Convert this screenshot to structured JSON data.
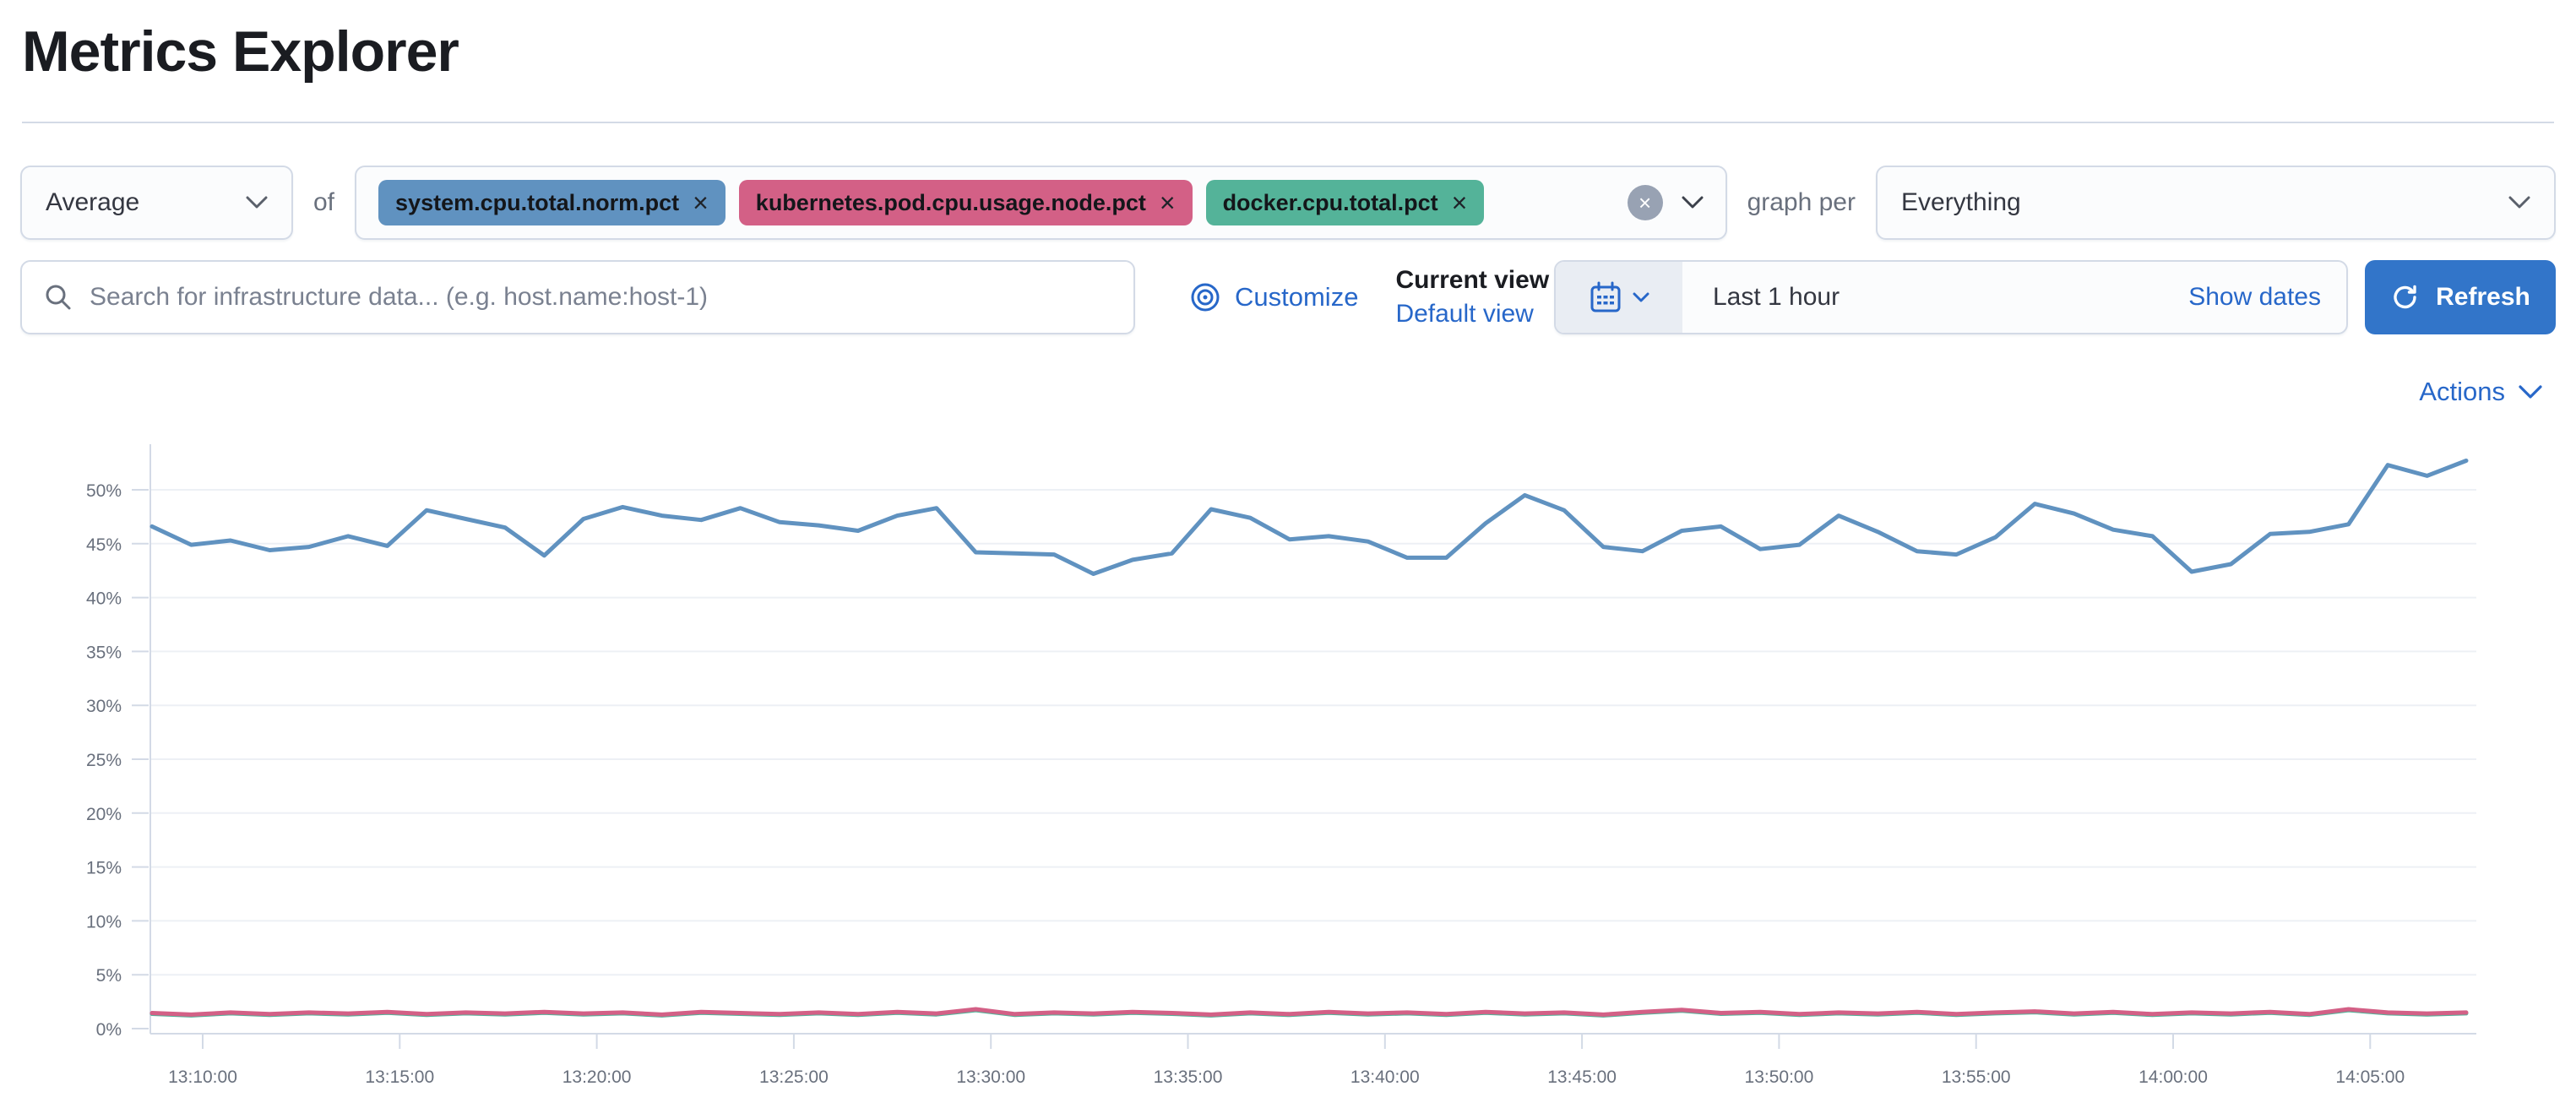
{
  "page": {
    "title": "Metrics Explorer"
  },
  "colors": {
    "link": "#2767c9",
    "primary_button": "#3275c9",
    "text": "#343741",
    "subdued_text": "#69707d",
    "border": "#d3dae6",
    "axis_text": "#69707d",
    "grid_line": "#edf0f5"
  },
  "icons": {
    "close": "×",
    "search": "magnifier",
    "calendar": "calendar",
    "refresh": "circular-arrow",
    "customize": "concentric-circles",
    "chevron": "chevron-down"
  },
  "toolbar": {
    "aggregation": {
      "value": "Average"
    },
    "of_label": "of",
    "metrics": [
      {
        "label": "system.cpu.total.norm.pct",
        "color": "#6092C0"
      },
      {
        "label": "kubernetes.pod.cpu.usage.node.pct",
        "color": "#D36086"
      },
      {
        "label": "docker.cpu.total.pct",
        "color": "#54B399"
      }
    ],
    "graph_per_label": "graph per",
    "group_by": {
      "value": "Everything"
    }
  },
  "filter_bar": {
    "search": {
      "placeholder": "Search for infrastructure data... (e.g. host.name:host-1)",
      "value": ""
    },
    "customize_label": "Customize",
    "current_view_label": "Current view",
    "default_view_label": "Default view",
    "time_range": {
      "value": "Last 1 hour",
      "show_dates_label": "Show dates"
    },
    "refresh_label": "Refresh"
  },
  "actions_label": "Actions",
  "chart_data": {
    "type": "line",
    "title": "",
    "xlabel": "",
    "ylabel": "",
    "unit": "%",
    "ylim": [
      0,
      53
    ],
    "grid": true,
    "legend_position": "none",
    "y_ticks": [
      "0%",
      "5%",
      "10%",
      "15%",
      "20%",
      "25%",
      "30%",
      "35%",
      "40%",
      "45%",
      "50%"
    ],
    "x_ticks": [
      "13:10:00",
      "13:15:00",
      "13:20:00",
      "13:25:00",
      "13:30:00",
      "13:35:00",
      "13:40:00",
      "13:45:00",
      "13:50:00",
      "13:55:00",
      "14:00:00",
      "14:05:00"
    ],
    "x_range_note": "one point per minute from ~13:08 to ~14:07",
    "series": [
      {
        "name": "Average(system.cpu.total.norm.pct)",
        "color": "#6092C0",
        "values": [
          46.6,
          44.9,
          45.3,
          44.4,
          44.7,
          45.7,
          44.8,
          48.1,
          47.3,
          46.5,
          43.9,
          47.3,
          48.4,
          47.6,
          47.2,
          48.3,
          47.0,
          46.7,
          46.2,
          47.6,
          48.3,
          44.2,
          44.1,
          44.0,
          42.2,
          43.5,
          44.1,
          48.2,
          47.4,
          45.4,
          45.7,
          45.2,
          43.7,
          43.7,
          46.9,
          49.5,
          48.1,
          44.7,
          44.3,
          46.2,
          46.6,
          44.5,
          44.9,
          47.6,
          46.1,
          44.3,
          44.0,
          45.6,
          48.7,
          47.8,
          46.3,
          45.7,
          42.4,
          43.1,
          45.9,
          46.1,
          46.8,
          52.3,
          51.3,
          52.7
        ]
      },
      {
        "name": "Average(docker.cpu.total.pct)",
        "color": "#54B399",
        "values": [
          1.37,
          1.22,
          1.42,
          1.27,
          1.42,
          1.32,
          1.47,
          1.27,
          1.42,
          1.32,
          1.47,
          1.32,
          1.42,
          1.22,
          1.47,
          1.37,
          1.27,
          1.42,
          1.27,
          1.47,
          1.32,
          1.72,
          1.27,
          1.42,
          1.32,
          1.47,
          1.37,
          1.22,
          1.42,
          1.27,
          1.47,
          1.32,
          1.42,
          1.27,
          1.47,
          1.32,
          1.42,
          1.22,
          1.47,
          1.67,
          1.37,
          1.47,
          1.27,
          1.42,
          1.32,
          1.47,
          1.27,
          1.42,
          1.52,
          1.32,
          1.47,
          1.27,
          1.42,
          1.32,
          1.47,
          1.27,
          1.72,
          1.42,
          1.32,
          1.42
        ]
      },
      {
        "name": "Average(kubernetes.pod.cpu.usage.node.pct)",
        "color": "#D36086",
        "values": [
          1.45,
          1.3,
          1.5,
          1.35,
          1.5,
          1.4,
          1.55,
          1.35,
          1.5,
          1.4,
          1.55,
          1.4,
          1.5,
          1.3,
          1.55,
          1.45,
          1.35,
          1.5,
          1.35,
          1.55,
          1.4,
          1.8,
          1.35,
          1.5,
          1.4,
          1.55,
          1.45,
          1.3,
          1.5,
          1.35,
          1.55,
          1.4,
          1.5,
          1.35,
          1.55,
          1.4,
          1.5,
          1.3,
          1.55,
          1.75,
          1.45,
          1.55,
          1.35,
          1.5,
          1.4,
          1.55,
          1.35,
          1.5,
          1.6,
          1.4,
          1.55,
          1.35,
          1.5,
          1.4,
          1.55,
          1.35,
          1.8,
          1.5,
          1.4,
          1.5
        ]
      }
    ]
  }
}
